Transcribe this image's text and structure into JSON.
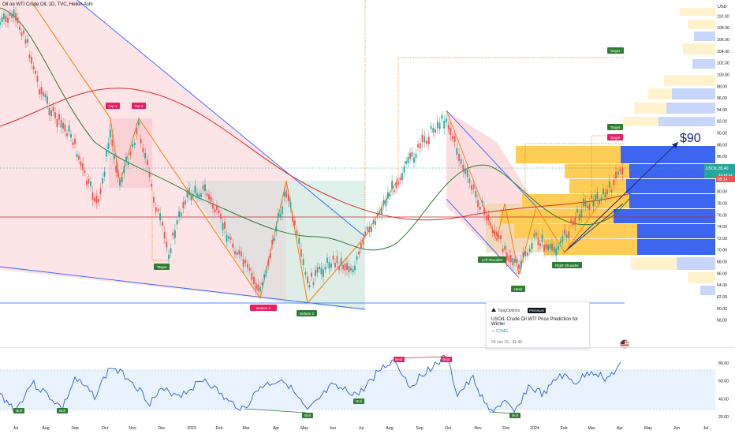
{
  "header": {
    "title": "Oil on WTI Crude Oil, 1D, TVC, Heikin Ashi"
  },
  "price_axis": {
    "unit": "USD",
    "ticks": [
      "110.00",
      "108.00",
      "106.00",
      "104.00",
      "102.00",
      "100.00",
      "98.00",
      "96.00",
      "94.00",
      "92.00",
      "90.00",
      "88.00",
      "86.00",
      "84.00",
      "82.00",
      "80.00",
      "78.00",
      "76.00",
      "74.00",
      "72.00",
      "70.00",
      "68.00",
      "66.00",
      "64.00",
      "62.00",
      "60.00",
      "58.00"
    ],
    "current_symbol": "USOIL",
    "current_price": "85.40",
    "countdown": "13:19:13",
    "second_price": "85.14"
  },
  "time_axis": {
    "ticks": [
      "Jul",
      "Aug",
      "Sep",
      "Oct",
      "Nov",
      "Dec",
      "2023",
      "Feb",
      "Mar",
      "Apr",
      "May",
      "Jun",
      "Jul",
      "Aug",
      "Sep",
      "Oct",
      "Nov",
      "Dec",
      "2024",
      "Feb",
      "Mar",
      "Apr",
      "May",
      "Jun",
      "Jul"
    ]
  },
  "rsi_axis": {
    "ticks": [
      "80.00",
      "60.00",
      "40.00",
      "20.00"
    ]
  },
  "annotations": {
    "top1": "Top 1",
    "top2": "Top 2",
    "target_left": "Target",
    "bottom1": "Bottom 1",
    "bottom2": "Bottom 2",
    "target_high": "Target",
    "target_mid": "Target",
    "target_red": "Target",
    "left_shoulder": "Left Shoulder",
    "head": "Head",
    "right_shoulder": "Right Shoulder",
    "price_target": "$90"
  },
  "rsi_labels": {
    "bull": "Bull",
    "bear": "Bear"
  },
  "idea_card": {
    "brand": "TopgOptions",
    "badge": "PREMIUM",
    "title": "USOIL Crude Oil WTI Price Prediction for Winter",
    "symbol": "↗ COMG",
    "date": "04 Jan 24 · 01:48"
  },
  "colors": {
    "bull": "#26a69a",
    "bear": "#ef5350",
    "ma_green": "#2e7d32",
    "ma_red": "#d32f2f",
    "rsi_line": "#2f5fc4",
    "wedge_blue": "#2962ff",
    "pattern_orange": "#f57c00"
  },
  "chart_data": {
    "type": "candlestick",
    "title": "Oil on WTI Crude Oil, 1D, TVC, Heikin Ashi",
    "y_axis_range": [
      57,
      111
    ],
    "rsi_range": [
      15,
      90
    ],
    "rsi_levels": [
      70,
      30
    ]
  }
}
